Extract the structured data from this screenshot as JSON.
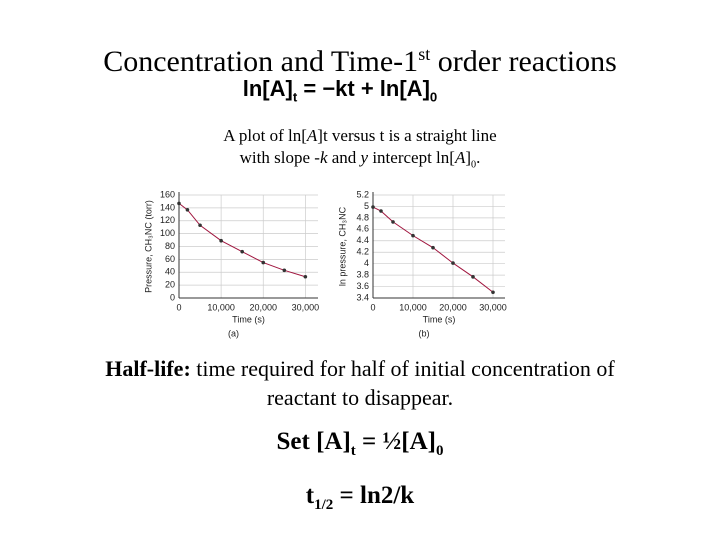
{
  "header": {
    "title": "Concentration and Time-1",
    "title_sup": "st",
    "title_rest": " order reactions"
  },
  "equation": {
    "lhs": "ln[A]",
    "lhs_sub": "t",
    "rhs": " = −kt + ln[A]",
    "rhs_sub": "0"
  },
  "description": {
    "p1": "A plot of ln[",
    "p2": "A",
    "p3": "]t versus t is a straight line",
    "p4": "with slope -",
    "p5": "k",
    "p6": " and ",
    "p7": "y",
    "p8": " intercept ln[",
    "p9": "A",
    "p10": "]",
    "p11": "0",
    "p12": "."
  },
  "half_life": {
    "term": "Half-life:",
    "definition": " time required for half of initial concentration of reactant to disappear."
  },
  "set_eq": {
    "a": "Set [A]",
    "a_sub": "t",
    "b": " = ½[A]",
    "b_sub": "0"
  },
  "t_half": {
    "a": "t",
    "a_sub": "1/2",
    "b": " = ln2/k"
  },
  "chart_data": [
    {
      "type": "line",
      "ylabel": "Pressure, CH₃NC (torr)",
      "xlabel": "Time (s)",
      "caption": "(a)",
      "x": [
        0,
        2000,
        5000,
        10000,
        15000,
        20000,
        25000,
        30000
      ],
      "series": [
        {
          "name": "CH₃NC",
          "color": "#a0153e",
          "values": [
            147,
            137,
            113,
            89,
            72,
            55,
            43,
            33
          ]
        }
      ],
      "xlim": [
        0,
        33000
      ],
      "xticks": [
        0,
        {
          "value": 10000,
          "label": "10,000"
        },
        {
          "value": 20000,
          "label": "20,000"
        },
        {
          "value": 30000,
          "label": "30,000"
        }
      ],
      "ylim": [
        0,
        160
      ],
      "yticks": [
        0,
        20,
        40,
        60,
        80,
        100,
        120,
        140,
        160
      ],
      "grid": true
    },
    {
      "type": "line",
      "ylabel": "ln pressure, CH₃NC",
      "xlabel": "Time (s)",
      "caption": "(b)",
      "x": [
        0,
        2000,
        5000,
        10000,
        15000,
        20000,
        25000,
        30000
      ],
      "series": [
        {
          "name": "ln CH₃NC",
          "color": "#a0153e",
          "values": [
            4.99,
            4.92,
            4.73,
            4.49,
            4.28,
            4.01,
            3.77,
            3.5
          ]
        }
      ],
      "xlim": [
        0,
        33000
      ],
      "xticks": [
        0,
        {
          "value": 10000,
          "label": "10,000"
        },
        {
          "value": 20000,
          "label": "20,000"
        },
        {
          "value": 30000,
          "label": "30,000"
        }
      ],
      "ylim": [
        3.4,
        5.2
      ],
      "yticks": [
        3.4,
        3.6,
        3.8,
        4.0,
        4.2,
        4.4,
        4.6,
        4.8,
        5.0,
        5.2
      ],
      "grid": true
    }
  ]
}
